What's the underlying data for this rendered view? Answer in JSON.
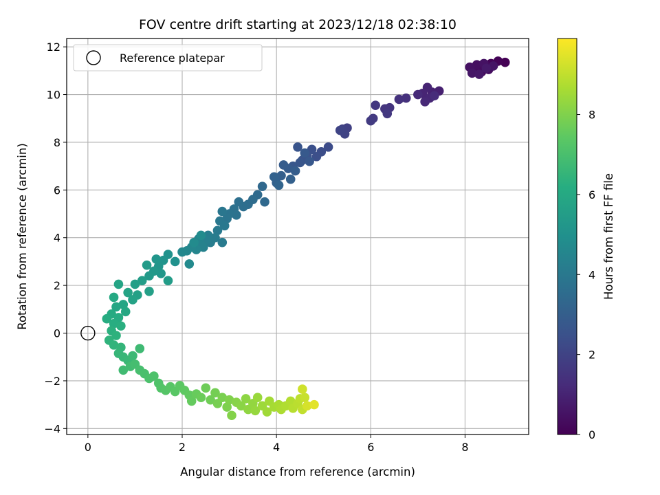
{
  "chart_data": {
    "type": "scatter",
    "title": "FOV centre drift starting at 2023/12/18 02:38:10",
    "xlabel": "Angular distance from reference (arcmin)",
    "ylabel": "Rotation from reference (arcmin)",
    "xlim": [
      -0.45,
      9.35
    ],
    "ylim": [
      -4.25,
      12.35
    ],
    "xticks": [
      0,
      2,
      4,
      6,
      8
    ],
    "yticks": [
      -4,
      -2,
      0,
      2,
      4,
      6,
      8,
      10,
      12
    ],
    "grid": true,
    "legend": {
      "position": "top-left",
      "entries": [
        "Reference platepar"
      ]
    },
    "colorbar": {
      "label": "Hours from first FF file",
      "range": [
        0,
        9.9
      ],
      "ticks": [
        0,
        2,
        4,
        6,
        8
      ],
      "colormap": "viridis"
    },
    "reference_point": {
      "x": 0,
      "y": 0,
      "label": "Reference platepar"
    },
    "series": [
      {
        "points": [
          [
            8.85,
            11.35,
            0.0
          ],
          [
            8.7,
            11.4,
            0.05
          ],
          [
            8.55,
            11.3,
            0.1
          ],
          [
            8.45,
            11.2,
            0.15
          ],
          [
            8.3,
            11.1,
            0.2
          ],
          [
            8.2,
            11.0,
            0.25
          ],
          [
            8.35,
            10.95,
            0.3
          ],
          [
            8.5,
            11.05,
            0.35
          ],
          [
            8.25,
            11.25,
            0.4
          ],
          [
            8.1,
            11.15,
            0.45
          ],
          [
            8.4,
            11.3,
            0.5
          ],
          [
            8.6,
            11.2,
            0.55
          ],
          [
            8.15,
            10.9,
            0.6
          ],
          [
            8.3,
            10.85,
            0.65
          ],
          [
            8.45,
            11.1,
            0.7
          ],
          [
            7.45,
            10.15,
            0.9
          ],
          [
            7.3,
            10.1,
            0.95
          ],
          [
            7.2,
            10.3,
            1.0
          ],
          [
            7.1,
            10.05,
            1.05
          ],
          [
            7.25,
            9.85,
            1.1
          ],
          [
            7.15,
            9.7,
            1.15
          ],
          [
            7.0,
            10.0,
            1.2
          ],
          [
            7.35,
            9.95,
            1.25
          ],
          [
            6.75,
            9.85,
            1.4
          ],
          [
            6.6,
            9.8,
            1.45
          ],
          [
            6.4,
            9.45,
            1.5
          ],
          [
            6.3,
            9.4,
            1.55
          ],
          [
            6.1,
            9.55,
            1.6
          ],
          [
            6.35,
            9.2,
            1.65
          ],
          [
            6.05,
            9.0,
            1.7
          ],
          [
            6.0,
            8.9,
            1.75
          ],
          [
            5.5,
            8.6,
            1.9
          ],
          [
            5.4,
            8.55,
            1.95
          ],
          [
            5.45,
            8.35,
            2.0
          ],
          [
            5.35,
            8.5,
            2.05
          ],
          [
            5.1,
            7.8,
            2.3
          ],
          [
            4.95,
            7.6,
            2.35
          ],
          [
            4.85,
            7.4,
            2.4
          ],
          [
            4.75,
            7.7,
            2.45
          ],
          [
            4.65,
            7.45,
            2.5
          ],
          [
            4.55,
            7.25,
            2.55
          ],
          [
            4.45,
            7.8,
            2.6
          ],
          [
            4.5,
            7.15,
            2.65
          ],
          [
            4.35,
            7.0,
            2.7
          ],
          [
            4.7,
            7.2,
            2.75
          ],
          [
            4.6,
            7.55,
            2.8
          ],
          [
            4.25,
            6.9,
            2.85
          ],
          [
            4.15,
            7.05,
            2.9
          ],
          [
            4.4,
            6.8,
            2.95
          ],
          [
            4.1,
            6.6,
            3.0
          ],
          [
            4.3,
            6.45,
            3.05
          ],
          [
            4.0,
            6.3,
            3.1
          ],
          [
            3.95,
            6.55,
            3.15
          ],
          [
            4.05,
            6.2,
            3.2
          ],
          [
            3.7,
            6.15,
            3.35
          ],
          [
            3.75,
            5.5,
            3.4
          ],
          [
            3.6,
            5.8,
            3.45
          ],
          [
            3.5,
            5.6,
            3.5
          ],
          [
            3.4,
            5.4,
            3.55
          ],
          [
            3.3,
            5.3,
            3.6
          ],
          [
            3.2,
            5.5,
            3.65
          ],
          [
            3.1,
            5.2,
            3.7
          ],
          [
            3.15,
            4.95,
            3.75
          ],
          [
            3.0,
            5.0,
            3.8
          ],
          [
            2.95,
            4.8,
            3.85
          ],
          [
            2.85,
            5.1,
            3.9
          ],
          [
            2.8,
            4.7,
            3.95
          ],
          [
            2.9,
            4.5,
            4.0
          ],
          [
            2.75,
            4.3,
            4.05
          ],
          [
            2.85,
            3.8,
            4.1
          ],
          [
            2.7,
            4.0,
            4.15
          ],
          [
            2.6,
            3.8,
            4.2
          ],
          [
            2.55,
            4.1,
            4.25
          ],
          [
            2.5,
            3.9,
            4.3
          ],
          [
            2.45,
            3.6,
            4.35
          ],
          [
            2.4,
            3.7,
            4.4
          ],
          [
            2.35,
            3.95,
            4.45
          ],
          [
            2.3,
            3.5,
            4.5
          ],
          [
            2.2,
            3.6,
            4.55
          ],
          [
            2.1,
            3.45,
            4.6
          ],
          [
            2.0,
            3.4,
            4.65
          ],
          [
            2.15,
            2.9,
            4.7
          ],
          [
            2.25,
            3.8,
            4.75
          ],
          [
            2.4,
            4.1,
            4.8
          ],
          [
            1.85,
            3.0,
            5.0
          ],
          [
            1.7,
            3.3,
            5.05
          ],
          [
            1.6,
            3.05,
            5.1
          ],
          [
            1.5,
            2.8,
            5.15
          ],
          [
            1.45,
            3.1,
            5.2
          ],
          [
            1.55,
            2.5,
            5.25
          ],
          [
            1.4,
            2.6,
            5.3
          ],
          [
            1.3,
            2.4,
            5.35
          ],
          [
            1.25,
            2.85,
            5.4
          ],
          [
            1.7,
            2.2,
            5.45
          ],
          [
            1.15,
            2.2,
            5.5
          ],
          [
            1.0,
            2.05,
            5.55
          ],
          [
            1.3,
            1.75,
            5.6
          ],
          [
            1.05,
            1.6,
            5.65
          ],
          [
            0.95,
            1.4,
            5.7
          ],
          [
            0.85,
            1.7,
            5.75
          ],
          [
            0.65,
            2.05,
            5.8
          ],
          [
            0.75,
            1.2,
            5.85
          ],
          [
            0.6,
            1.1,
            5.9
          ],
          [
            0.8,
            0.9,
            5.95
          ],
          [
            0.55,
            1.5,
            6.0
          ],
          [
            0.5,
            0.8,
            6.05
          ],
          [
            0.65,
            0.65,
            6.1
          ],
          [
            0.4,
            0.6,
            6.15
          ],
          [
            0.55,
            0.4,
            6.2
          ],
          [
            0.7,
            0.3,
            6.25
          ],
          [
            0.5,
            0.1,
            6.3
          ],
          [
            0.6,
            -0.1,
            6.35
          ],
          [
            0.45,
            -0.3,
            6.4
          ],
          [
            0.55,
            -0.5,
            6.45
          ],
          [
            0.7,
            -0.6,
            6.5
          ],
          [
            0.65,
            -0.85,
            6.55
          ],
          [
            0.75,
            -1.0,
            6.6
          ],
          [
            0.85,
            -1.15,
            6.65
          ],
          [
            0.95,
            -0.95,
            6.7
          ],
          [
            1.1,
            -0.65,
            6.75
          ],
          [
            0.75,
            -1.55,
            6.8
          ],
          [
            0.9,
            -1.4,
            6.85
          ],
          [
            1.0,
            -1.3,
            6.9
          ],
          [
            1.1,
            -1.55,
            6.95
          ],
          [
            1.2,
            -1.7,
            7.0
          ],
          [
            1.3,
            -1.9,
            7.05
          ],
          [
            1.4,
            -1.8,
            7.1
          ],
          [
            1.5,
            -2.1,
            7.15
          ],
          [
            1.55,
            -2.3,
            7.2
          ],
          [
            1.65,
            -2.4,
            7.25
          ],
          [
            1.75,
            -2.25,
            7.3
          ],
          [
            1.85,
            -2.45,
            7.35
          ],
          [
            1.95,
            -2.2,
            7.4
          ],
          [
            2.05,
            -2.4,
            7.45
          ],
          [
            2.15,
            -2.6,
            7.5
          ],
          [
            2.2,
            -2.85,
            7.55
          ],
          [
            2.3,
            -2.55,
            7.6
          ],
          [
            2.4,
            -2.7,
            7.65
          ],
          [
            2.5,
            -2.3,
            7.7
          ],
          [
            2.6,
            -2.8,
            7.75
          ],
          [
            2.7,
            -2.5,
            7.8
          ],
          [
            2.75,
            -2.95,
            7.85
          ],
          [
            2.85,
            -2.7,
            7.9
          ],
          [
            2.95,
            -3.1,
            7.95
          ],
          [
            3.0,
            -2.8,
            8.0
          ],
          [
            3.05,
            -3.45,
            8.05
          ],
          [
            3.15,
            -2.9,
            8.1
          ],
          [
            3.25,
            -3.05,
            8.15
          ],
          [
            3.35,
            -2.75,
            8.2
          ],
          [
            3.4,
            -3.2,
            8.25
          ],
          [
            3.5,
            -2.95,
            8.3
          ],
          [
            3.55,
            -3.25,
            8.35
          ],
          [
            3.6,
            -2.7,
            8.4
          ],
          [
            3.7,
            -3.05,
            8.45
          ],
          [
            3.8,
            -3.3,
            8.5
          ],
          [
            3.85,
            -2.85,
            8.55
          ],
          [
            3.95,
            -3.1,
            8.6
          ],
          [
            4.05,
            -3.0,
            8.65
          ],
          [
            4.1,
            -3.2,
            8.7
          ],
          [
            4.2,
            -3.05,
            8.75
          ],
          [
            4.3,
            -2.85,
            8.8
          ],
          [
            4.35,
            -3.15,
            8.85
          ],
          [
            4.45,
            -2.95,
            8.9
          ],
          [
            4.5,
            -2.75,
            8.95
          ],
          [
            4.55,
            -3.2,
            9.0
          ],
          [
            4.6,
            -2.7,
            9.1
          ],
          [
            4.55,
            -2.35,
            9.2
          ],
          [
            4.65,
            -3.05,
            9.3
          ],
          [
            4.8,
            -3.0,
            9.5
          ]
        ]
      }
    ]
  }
}
